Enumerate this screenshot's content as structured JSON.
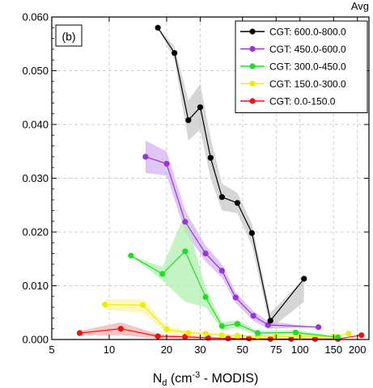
{
  "chart_data": {
    "type": "line",
    "corner_label": "Avg",
    "panel_label": "(b)",
    "xlabel": {
      "main": "N",
      "sub": "d",
      "rest": " (cm",
      "sup": "-3",
      "tail": " - MODIS)"
    },
    "ylabel": "",
    "xscale": "log",
    "xlim": [
      5,
      230
    ],
    "ylim": [
      0,
      0.06
    ],
    "grid": true,
    "legend_position": "top-right",
    "x_ticks": [
      {
        "value": 5,
        "label": "5"
      },
      {
        "value": 10,
        "label": "10"
      },
      {
        "value": 20,
        "label": "20"
      },
      {
        "value": 30,
        "label": "30"
      },
      {
        "value": 50,
        "label": "50"
      },
      {
        "value": 75,
        "label": "75"
      },
      {
        "value": 100,
        "label": "100"
      },
      {
        "value": 150,
        "label": "150"
      },
      {
        "value": 200,
        "label": "200"
      }
    ],
    "y_ticks": [
      {
        "value": 0,
        "label": "0.000"
      },
      {
        "value": 0.01,
        "label": "0.010"
      },
      {
        "value": 0.02,
        "label": "0.020"
      },
      {
        "value": 0.03,
        "label": "0.030"
      },
      {
        "value": 0.04,
        "label": "0.040"
      },
      {
        "value": 0.05,
        "label": "0.050"
      },
      {
        "value": 0.06,
        "label": "0.060"
      }
    ],
    "series": [
      {
        "name": "CGT: 600.0-800.0",
        "color": "#000000",
        "band_color": "#c8c8c8",
        "x": [
          18,
          22,
          26,
          30,
          34,
          39,
          47,
          56,
          70,
          105
        ],
        "y": [
          0.058,
          0.0533,
          0.0408,
          0.0432,
          0.0338,
          0.0265,
          0.0254,
          0.0198,
          0.0035,
          0.0113
        ],
        "y_low": [
          0.058,
          0.052,
          0.037,
          0.039,
          0.03,
          0.024,
          0.0235,
          0.0175,
          0.002,
          0.007
        ],
        "y_high": [
          0.058,
          0.0545,
          0.0445,
          0.0475,
          0.0375,
          0.029,
          0.0273,
          0.0215,
          0.005,
          0.0113
        ]
      },
      {
        "name": "CGT: 450.0-600.0",
        "color": "#9933dd",
        "band_color": "#d6b3f0",
        "x": [
          15.5,
          20,
          25,
          32,
          39,
          46,
          57,
          68,
          125
        ],
        "y": [
          0.034,
          0.0327,
          0.0219,
          0.016,
          0.0128,
          0.0078,
          0.0044,
          0.0027,
          0.0023
        ],
        "y_low": [
          0.031,
          0.0305,
          0.02,
          0.0145,
          0.0115,
          0.0068,
          0.0035,
          0.002,
          0.0023
        ],
        "y_high": [
          0.037,
          0.035,
          0.024,
          0.0175,
          0.014,
          0.0088,
          0.0053,
          0.0034,
          0.0023
        ]
      },
      {
        "name": "CGT: 300.0-450.0",
        "color": "#22dd22",
        "band_color": "#b0f0b0",
        "x": [
          13,
          19,
          25,
          32,
          39,
          47,
          60,
          95,
          158
        ],
        "y": [
          0.0156,
          0.0122,
          0.0164,
          0.0079,
          0.0025,
          0.0029,
          0.0012,
          0.0013,
          0.0004
        ],
        "y_low": [
          0.0156,
          0.011,
          0.007,
          0.006,
          0.0018,
          0.0022,
          0.0008,
          0.0009,
          0.0002
        ],
        "y_high": [
          0.0156,
          0.0135,
          0.0235,
          0.0095,
          0.0032,
          0.0036,
          0.0016,
          0.0017,
          0.0006
        ]
      },
      {
        "name": "CGT: 150.0-300.0",
        "color": "#eeee00",
        "band_color": "#f7f7a8",
        "x": [
          9.5,
          15,
          20,
          26,
          32,
          39,
          47,
          60,
          75,
          100,
          150,
          180
        ],
        "y": [
          0.0065,
          0.0064,
          0.0019,
          0.0012,
          0.0011,
          0.0008,
          0.0007,
          0.0006,
          0.0006,
          0.0005,
          0.0006,
          0.0011
        ],
        "y_low": [
          0.0055,
          0.005,
          0.0012,
          0.0008,
          0.0008,
          0.0005,
          0.0004,
          0.0004,
          0.0004,
          0.0003,
          0.0004,
          0.0011
        ],
        "y_high": [
          0.0075,
          0.0075,
          0.0026,
          0.0016,
          0.0014,
          0.0011,
          0.001,
          0.0008,
          0.0008,
          0.0007,
          0.0008,
          0.0011
        ]
      },
      {
        "name": "CGT: 0.0-150.0",
        "color": "#ee1111",
        "band_color": "#f5b0b0",
        "x": [
          7,
          11.5,
          18,
          25,
          33,
          42,
          54,
          70,
          90,
          120,
          158,
          210
        ],
        "y": [
          0.0012,
          0.002,
          0.0006,
          0.0005,
          0.0003,
          0.0002,
          0.0002,
          0.0001,
          0.0001,
          0.0001,
          0.0001,
          0.0008
        ],
        "y_low": [
          0.0008,
          0.0008,
          0.0002,
          0.0002,
          0.0001,
          0.0001,
          0.0001,
          0.0,
          0.0,
          0.0,
          0.0,
          0.0008
        ],
        "y_high": [
          0.0016,
          0.0032,
          0.001,
          0.0008,
          0.0005,
          0.0003,
          0.0003,
          0.0002,
          0.0002,
          0.0002,
          0.0002,
          0.0008
        ]
      }
    ]
  }
}
